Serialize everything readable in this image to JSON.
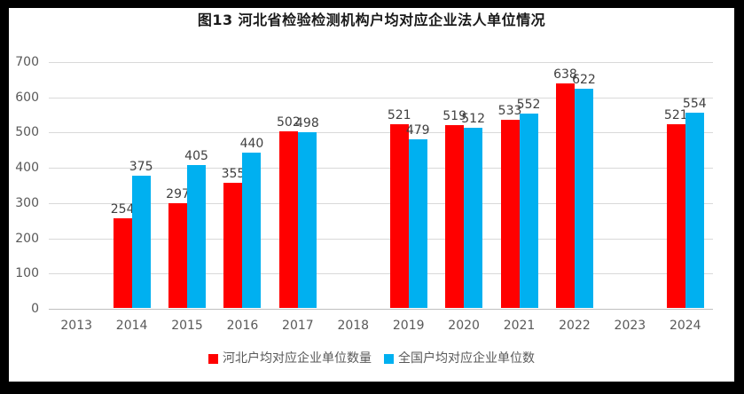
{
  "frame": {
    "background": "#000000",
    "canvas_background": "#FFFFFF"
  },
  "chart_data": {
    "type": "bar",
    "title": "图13 河北省检验检测机构户均对应企业法人单位情况",
    "categories": [
      "2013",
      "2014",
      "2015",
      "2016",
      "2017",
      "2018",
      "2019",
      "2020",
      "2021",
      "2022",
      "2023",
      "2024"
    ],
    "series": [
      {
        "name": "河北户均对应企业单位数量",
        "color": "#FF0000",
        "values": [
          null,
          254,
          297,
          355,
          502,
          null,
          521,
          519,
          533,
          638,
          null,
          521
        ]
      },
      {
        "name": "全国户均对应企业单位数",
        "color": "#00B0F0",
        "values": [
          null,
          375,
          405,
          440,
          498,
          null,
          479,
          512,
          552,
          622,
          null,
          554
        ]
      }
    ],
    "xlabel": "",
    "ylabel": "",
    "ylim": [
      0,
      700
    ],
    "ytick_step": 100,
    "yticks": [
      0,
      100,
      200,
      300,
      400,
      500,
      600,
      700
    ],
    "grid": true,
    "data_labels": true,
    "legend_position": "bottom",
    "colors": {
      "gridline": "#D9D9D9",
      "axis_line": "#BFBFBF",
      "tick_label": "#595959",
      "data_label": "#404040",
      "title": "#1A1A1A",
      "legend_label": "#595959"
    }
  }
}
